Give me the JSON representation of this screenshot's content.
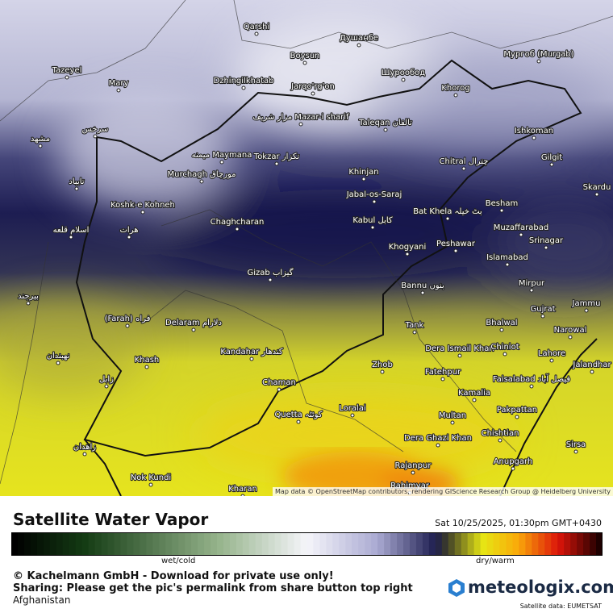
{
  "map": {
    "attribution": "Map data © OpenStreetMap contributors, rendering GIScience Research Group @ Heidelberg University",
    "places": [
      "Qarshi",
      "Душанбе",
      "Boysun",
      "Tazeyel",
      "Mary",
      "Dzhingilkhatab",
      "Jarqo'rg'on",
      "Шурообод",
      "Khorog",
      "Мургоб (Murgab)",
      "مزار شریف Mazar-i sharif",
      "Taleqan تالقان",
      "Ishkoman",
      "Gilgit",
      "Tokzar تكزار",
      "میمنه Maymana",
      "Murchagh مورچاق",
      "Chitral چترال",
      "Khinjan",
      "Skardu",
      "Jabal-os-Saraj",
      "Bat Khela بٹ خیلہ",
      "Besham",
      "Koshk-e Kohneh",
      "Chaghcharan",
      "Kabul کابل",
      "Muzaffarabad",
      "Srinagar",
      "Peshawar",
      "Khogyani",
      "Islamabad",
      "Gizab گیزاب",
      "Bannu بنوں",
      "Mirpur",
      "Jammu",
      "Gujrat",
      "(Farah) فراه",
      "Delaram دلارام",
      "Bhalwal",
      "Tank",
      "Narowal",
      "Dera Ismail Khan",
      "Chiniot",
      "Lahore",
      "Khash",
      "Kandahar کندهار",
      "Zhob",
      "Jalandhar",
      "Fatehpur",
      "Faisalabad فیصل آباد",
      "Chaman",
      "Kamalia",
      "Loralai",
      "Quetta کوئٹہ",
      "Multan",
      "Pakpattan",
      "Dera Ghazi Khan",
      "Chishtian",
      "Sirsa",
      "Anupgarh",
      "Rajanpur",
      "Nok Kundi",
      "Kharan",
      "Rahimyar",
      "مشهد",
      "سرخس",
      "تایباد",
      "اسلام قلعه",
      "هرات",
      "بیرجند",
      "نهبندان",
      "زابل",
      "زاهدان"
    ]
  },
  "legend": {
    "title": "Satellite Water Vapor",
    "timestamp": "Sat 10/25/2025, 01:30pm GMT+0430",
    "low_label": "wet/cold",
    "high_label": "dry/warm"
  },
  "footer": {
    "copyright": "© Kachelmann GmbH - Download for private use only!",
    "sharing": "Sharing: Please get the pic's permalink from share button top right",
    "region": "Afghanistan",
    "brand": "meteologix.com",
    "source": "Satellite data: EUMETSAT"
  }
}
